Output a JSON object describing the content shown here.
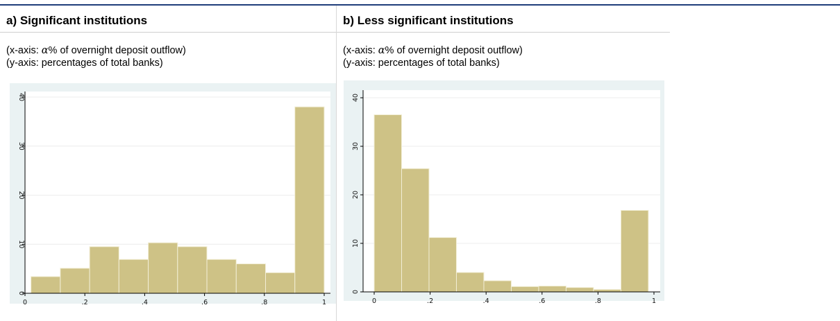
{
  "panels": {
    "a": {
      "title": "a) Significant institutions",
      "note_x_prefix": "(x-axis: ",
      "note_x_symbol": "α",
      "note_x_suffix": "% of overnight deposit outflow)",
      "note_y": "(y-axis: percentages of total banks)"
    },
    "b": {
      "title": "b) Less significant institutions",
      "note_x_prefix": "(x-axis: ",
      "note_x_symbol": "α",
      "note_x_suffix": "% of overnight deposit outflow)",
      "note_y": "(y-axis: percentages of total banks)"
    }
  },
  "colors": {
    "bar_fill": "#cec286",
    "bar_edge": "#f2eed6",
    "plot_bg": "#ffffff",
    "outer_bg": "#eaf2f3",
    "grid": "#ececec",
    "axis": "#000000"
  },
  "chart_data": [
    {
      "type": "bar",
      "title": "a) Significant institutions",
      "bin_edges": [
        0.02,
        0.118,
        0.216,
        0.314,
        0.412,
        0.51,
        0.608,
        0.706,
        0.804,
        0.902,
        1.0
      ],
      "values": [
        3.4,
        5.1,
        9.5,
        6.9,
        10.3,
        9.5,
        6.9,
        6.0,
        4.2,
        38.0
      ],
      "xlim": [
        0,
        1
      ],
      "ylim": [
        0,
        40
      ],
      "xticks": [
        "0",
        ".2",
        ".4",
        ".6",
        ".8",
        "1"
      ],
      "xtick_values": [
        0,
        0.2,
        0.4,
        0.6,
        0.8,
        1
      ],
      "yticks": [
        "0",
        "10",
        "20",
        "30",
        "40"
      ],
      "ytick_values": [
        0,
        10,
        20,
        30,
        40
      ],
      "grid": true
    },
    {
      "type": "bar",
      "title": "b) Less significant institutions",
      "bin_edges": [
        0.0,
        0.098,
        0.196,
        0.294,
        0.392,
        0.49,
        0.588,
        0.686,
        0.784,
        0.882,
        0.98
      ],
      "values": [
        36.5,
        25.4,
        11.2,
        4.0,
        2.3,
        1.1,
        1.2,
        0.9,
        0.5,
        16.8
      ],
      "xlim": [
        0,
        1
      ],
      "ylim": [
        0,
        40
      ],
      "xticks": [
        "0",
        ".2",
        ".4",
        ".6",
        ".8",
        "1"
      ],
      "xtick_values": [
        0,
        0.2,
        0.4,
        0.6,
        0.8,
        1
      ],
      "yticks": [
        "0",
        "10",
        "20",
        "30",
        "40"
      ],
      "ytick_values": [
        0,
        10,
        20,
        30,
        40
      ],
      "grid": true
    }
  ]
}
